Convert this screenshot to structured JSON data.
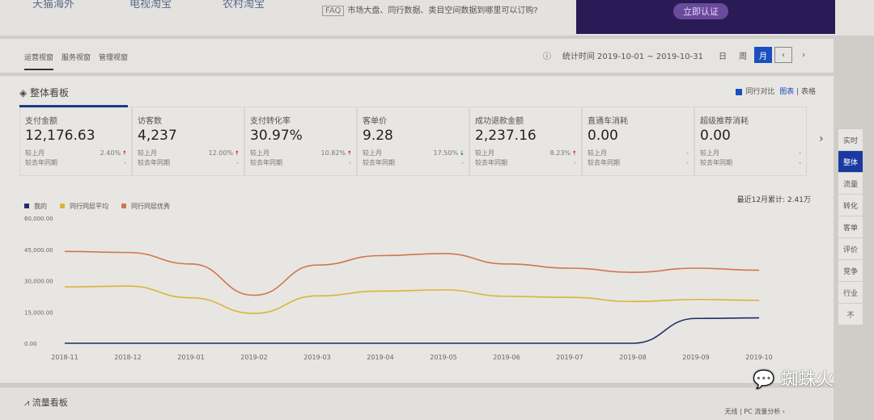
{
  "top": {
    "nav": [
      "天猫海外",
      "电视淘宝",
      "农村淘宝"
    ],
    "faq_badge": "FAQ",
    "faq_text": "市场大盘、同行数据、类目空间数据到哪里可以订购?",
    "banner_button": "立即认证"
  },
  "toolbar": {
    "tabs": [
      "运营视窗",
      "服务视窗",
      "管理视窗"
    ],
    "date_range": "统计时间 2019-10-01 ~ 2019-10-31",
    "periods": [
      "日",
      "周",
      "月"
    ],
    "active_period": "月",
    "prev": "‹",
    "next": "›"
  },
  "panel": {
    "title": "整体看板",
    "compare_label": "同行对比",
    "view_chart": "图表",
    "view_table": "表格",
    "compare_checked": true,
    "cards": [
      {
        "label": "支付金额",
        "value": "12,176.63",
        "mom_label": "较上月",
        "mom": "2.40%",
        "trend": "up",
        "yoy_label": "较去年同期",
        "yoy": "-"
      },
      {
        "label": "访客数",
        "value": "4,237",
        "mom_label": "较上月",
        "mom": "12.00%",
        "trend": "up",
        "yoy_label": "较去年同期",
        "yoy": "-"
      },
      {
        "label": "支付转化率",
        "value": "30.97%",
        "mom_label": "较上月",
        "mom": "10.82%",
        "trend": "up",
        "yoy_label": "较去年同期",
        "yoy": "-"
      },
      {
        "label": "客单价",
        "value": "9.28",
        "mom_label": "较上月",
        "mom": "17.50%",
        "trend": "down",
        "yoy_label": "较去年同期",
        "yoy": "-"
      },
      {
        "label": "成功退款金额",
        "value": "2,237.16",
        "mom_label": "较上月",
        "mom": "8.23%",
        "trend": "up",
        "yoy_label": "较去年同期",
        "yoy": "-"
      },
      {
        "label": "直通车消耗",
        "value": "0.00",
        "mom_label": "较上月",
        "mom": "-",
        "trend": "",
        "yoy_label": "较去年同期",
        "yoy": "-"
      },
      {
        "label": "超级推荐消耗",
        "value": "0.00",
        "mom_label": "较上月",
        "mom": "-",
        "trend": "",
        "yoy_label": "较去年同期",
        "yoy": "-"
      }
    ],
    "total": "最近12月累计: 2.41万"
  },
  "sidebar": [
    "实时",
    "整体",
    "流量",
    "转化",
    "客单",
    "评价",
    "竞争",
    "行业",
    "不"
  ],
  "sidebar_active": "整体",
  "bottom": {
    "title": "流量看板",
    "right": "无线 | PC   流量分析 ›"
  },
  "watermark": "蜘蛛火",
  "chart_data": {
    "type": "line",
    "x": [
      "2018-11",
      "2018-12",
      "2019-01",
      "2019-02",
      "2019-03",
      "2019-04",
      "2019-05",
      "2019-06",
      "2019-07",
      "2019-08",
      "2019-09",
      "2019-10"
    ],
    "yticks": [
      "0.00",
      "15,000.00",
      "30,000.00",
      "45,000.00",
      "60,000.00"
    ],
    "ylim": [
      0,
      60000
    ],
    "legend_position": "top-left",
    "series": [
      {
        "name": "我的",
        "color": "#1f2d6b",
        "values": [
          0,
          0,
          0,
          0,
          0,
          0,
          0,
          0,
          0,
          0,
          11900,
          12177
        ]
      },
      {
        "name": "同行同层平均",
        "color": "#d9b43a",
        "values": [
          27000,
          27400,
          21800,
          14300,
          22700,
          25000,
          25600,
          22500,
          22000,
          20000,
          21000,
          20600
        ]
      },
      {
        "name": "同行同层优秀",
        "color": "#d2754f",
        "values": [
          44000,
          43500,
          38000,
          23000,
          37500,
          42000,
          43000,
          38000,
          36000,
          34000,
          36000,
          35000
        ]
      }
    ]
  }
}
